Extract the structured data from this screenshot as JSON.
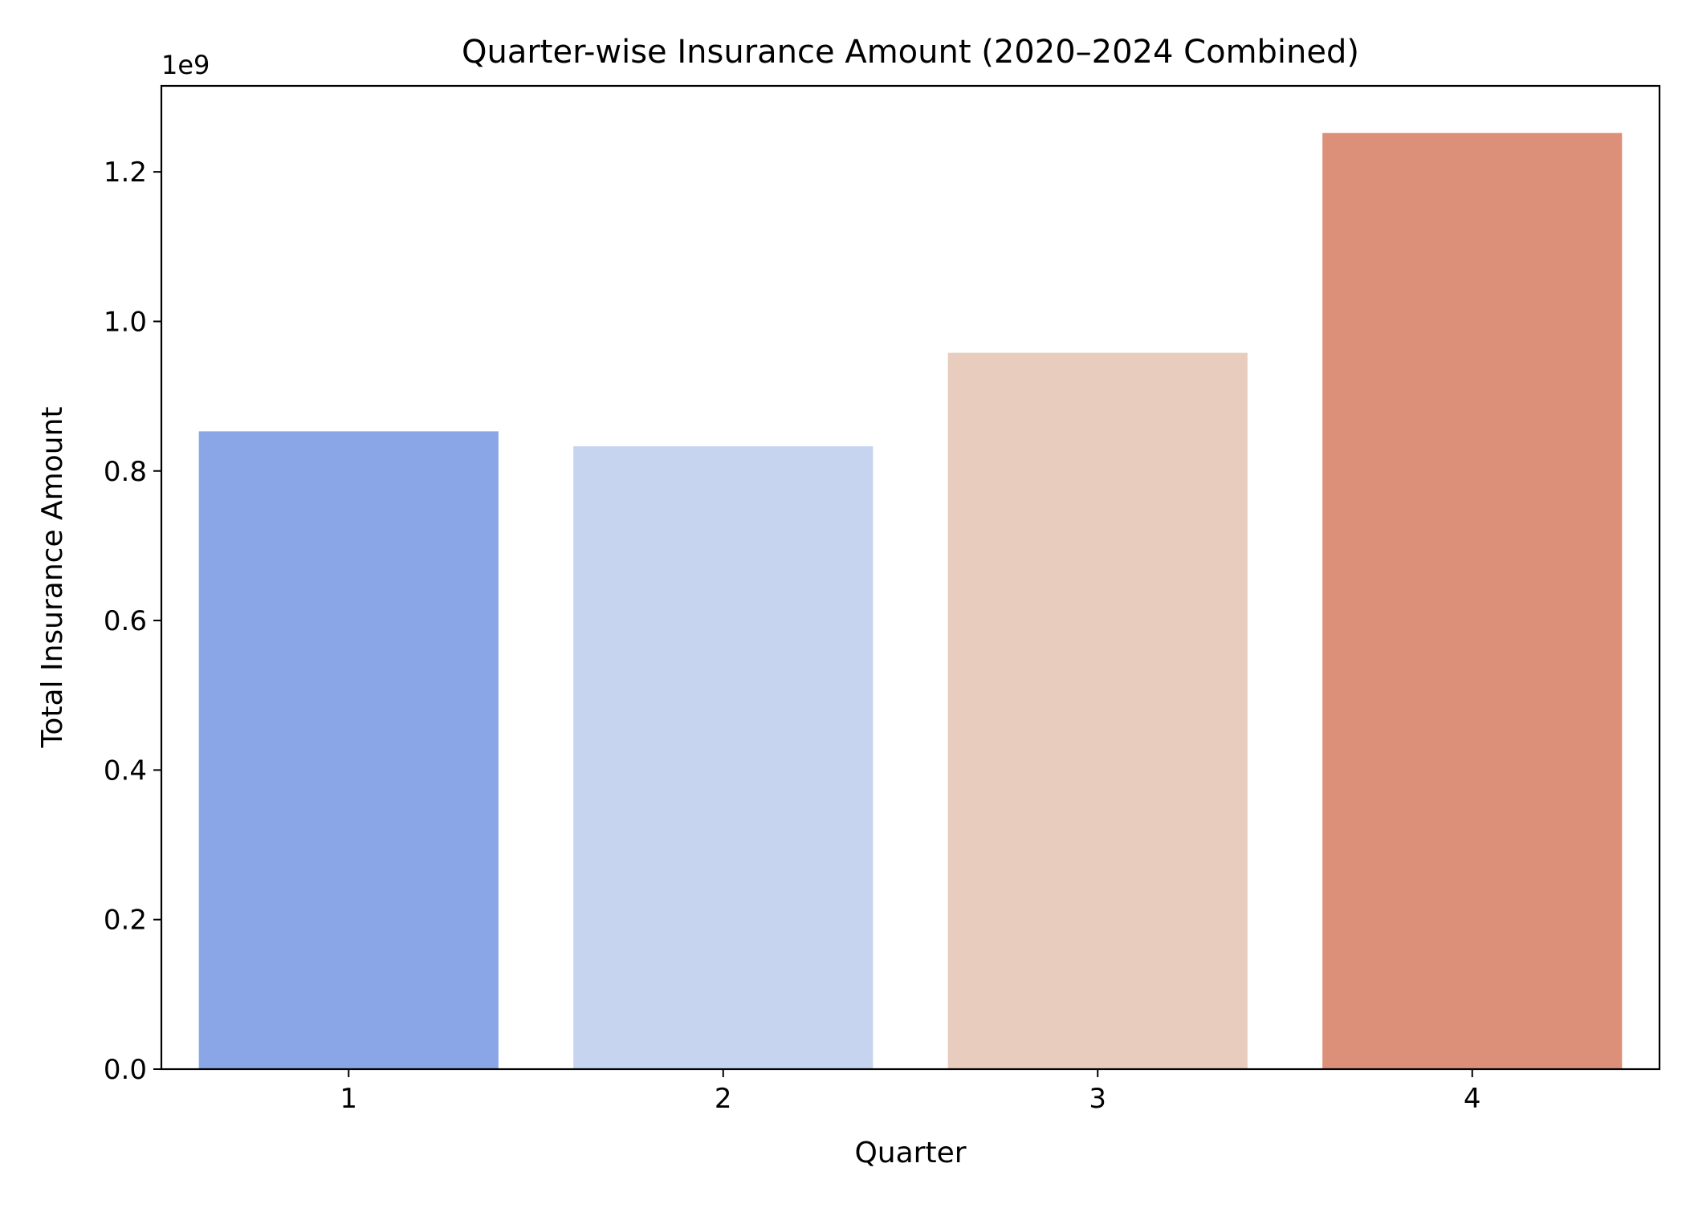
{
  "chart_data": {
    "type": "bar",
    "title": "Quarter-wise Insurance Amount (2020–2024 Combined)",
    "xlabel": "Quarter",
    "ylabel": "Total Insurance Amount",
    "y_offset_label": "1e9",
    "categories": [
      "1",
      "2",
      "3",
      "4"
    ],
    "values": [
      0.853,
      0.833,
      0.958,
      1.252
    ],
    "value_unit_multiplier": 1000000000,
    "ylim": [
      0,
      1.315
    ],
    "yticks": [
      0.0,
      0.2,
      0.4,
      0.6,
      0.8,
      1.0,
      1.2
    ],
    "ytick_labels": [
      "0.0",
      "0.2",
      "0.4",
      "0.6",
      "0.8",
      "1.0",
      "1.2"
    ],
    "bar_colors": [
      "#8aa6e7",
      "#c7d4f0",
      "#e8ccbe",
      "#dc8f79"
    ],
    "grid": false,
    "legend": "none"
  }
}
